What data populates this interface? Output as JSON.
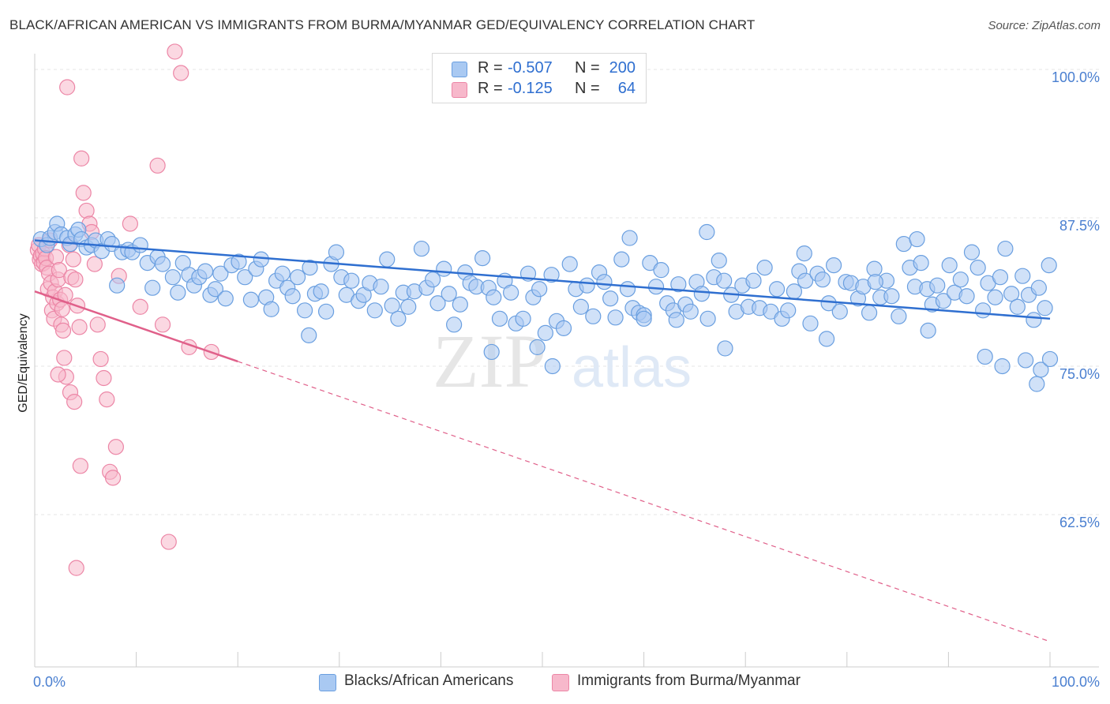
{
  "title": "BLACK/AFRICAN AMERICAN VS IMMIGRANTS FROM BURMA/MYANMAR GED/EQUIVALENCY CORRELATION CHART",
  "source": "Source: ZipAtlas.com",
  "watermark": {
    "zip": "ZIP",
    "atlas": "atlas"
  },
  "colors": {
    "blue_fill": "#a9c9f2",
    "blue_stroke": "#6a9fe0",
    "blue_line": "#2f6fd0",
    "pink_fill": "#f7b8cb",
    "pink_stroke": "#ec86a6",
    "pink_line": "#e0608a",
    "tick_text": "#4a7fd0",
    "grid": "#e4e4e4"
  },
  "legend_stats": [
    {
      "r_label": "R =",
      "r_value": "-0.507",
      "n_label": "N =",
      "n_value": "200"
    },
    {
      "r_label": "R =",
      "r_value": "-0.125",
      "n_label": "N =",
      "n_value": "64"
    }
  ],
  "chart_data": {
    "type": "scatter",
    "title": "BLACK/AFRICAN AMERICAN VS IMMIGRANTS FROM BURMA/MYANMAR GED/EQUIVALENCY CORRELATION CHART",
    "xlabel": "",
    "ylabel": "GED/Equivalency",
    "xlim": [
      0,
      100
    ],
    "ylim": [
      50,
      102.5
    ],
    "x_tick_labels": [
      "0.0%",
      "100.0%"
    ],
    "x_tick_values": [
      0,
      100
    ],
    "y_tick_labels": [
      "100.0%",
      "87.5%",
      "75.0%",
      "62.5%"
    ],
    "y_tick_values": [
      100,
      87.5,
      75,
      62.5
    ],
    "grid": true,
    "legend_position": "bottom",
    "series": [
      {
        "name": "Blacks/African Americans",
        "color": "#a9c9f2",
        "trend": {
          "x": [
            0,
            100
          ],
          "y": [
            86.2,
            79.6
          ]
        },
        "points": [
          [
            0.6,
            86.3
          ],
          [
            1.2,
            85.8
          ],
          [
            1.5,
            86.4
          ],
          [
            2,
            86.9
          ],
          [
            2.2,
            87.6
          ],
          [
            2.6,
            86.7
          ],
          [
            3.2,
            86.4
          ],
          [
            3.5,
            85.9
          ],
          [
            4,
            86.7
          ],
          [
            4.3,
            87.1
          ],
          [
            4.6,
            86.3
          ],
          [
            5.1,
            85.6
          ],
          [
            5.6,
            85.8
          ],
          [
            6,
            86.2
          ],
          [
            6.6,
            85.3
          ],
          [
            7.2,
            86.3
          ],
          [
            7.6,
            85.9
          ],
          [
            8.1,
            82.4
          ],
          [
            8.6,
            85.2
          ],
          [
            9.2,
            85.4
          ],
          [
            9.6,
            85.2
          ],
          [
            10.4,
            85.8
          ],
          [
            11.1,
            84.3
          ],
          [
            11.6,
            82.2
          ],
          [
            12.1,
            84.8
          ],
          [
            12.6,
            84.2
          ],
          [
            13.6,
            83.1
          ],
          [
            14.1,
            81.8
          ],
          [
            14.6,
            84.3
          ],
          [
            15.2,
            83.3
          ],
          [
            15.7,
            82.4
          ],
          [
            16.2,
            83.1
          ],
          [
            16.8,
            83.6
          ],
          [
            17.3,
            81.6
          ],
          [
            17.8,
            82.1
          ],
          [
            18.3,
            83.4
          ],
          [
            18.8,
            81.3
          ],
          [
            19.4,
            84.1
          ],
          [
            20.1,
            84.4
          ],
          [
            20.7,
            83.1
          ],
          [
            21.3,
            81.2
          ],
          [
            21.8,
            83.8
          ],
          [
            22.3,
            84.6
          ],
          [
            22.8,
            81.4
          ],
          [
            23.3,
            80.4
          ],
          [
            23.8,
            82.8
          ],
          [
            24.4,
            83.4
          ],
          [
            24.9,
            82.2
          ],
          [
            25.4,
            81.5
          ],
          [
            25.9,
            83.1
          ],
          [
            26.6,
            80.3
          ],
          [
            27.1,
            83.9
          ],
          [
            27.6,
            81.7
          ],
          [
            28.2,
            81.9
          ],
          [
            28.7,
            80.2
          ],
          [
            29.2,
            84.2
          ],
          [
            29.7,
            85.2
          ],
          [
            30.2,
            83.1
          ],
          [
            30.7,
            81.6
          ],
          [
            31.2,
            82.8
          ],
          [
            31.9,
            81.1
          ],
          [
            32.4,
            81.6
          ],
          [
            33,
            82.6
          ],
          [
            33.5,
            80.3
          ],
          [
            34.1,
            82.3
          ],
          [
            34.7,
            84.6
          ],
          [
            35.2,
            80.7
          ],
          [
            35.8,
            79.6
          ],
          [
            36.3,
            81.8
          ],
          [
            36.8,
            80.6
          ],
          [
            37.4,
            81.9
          ],
          [
            38.1,
            85.5
          ],
          [
            38.6,
            82.2
          ],
          [
            39.2,
            82.9
          ],
          [
            39.7,
            80.9
          ],
          [
            40.3,
            83.8
          ],
          [
            40.8,
            81.7
          ],
          [
            41.3,
            79.1
          ],
          [
            41.9,
            80.8
          ],
          [
            42.4,
            83.5
          ],
          [
            42.9,
            82.6
          ],
          [
            43.5,
            82.3
          ],
          [
            44.1,
            84.7
          ],
          [
            44.7,
            82.2
          ],
          [
            45.2,
            81.4
          ],
          [
            45.8,
            79.6
          ],
          [
            46.3,
            82.8
          ],
          [
            46.9,
            81.8
          ],
          [
            47.4,
            79.2
          ],
          [
            48.1,
            79.6
          ],
          [
            48.6,
            83.4
          ],
          [
            49.1,
            81.4
          ],
          [
            49.7,
            82.1
          ],
          [
            50.3,
            78.4
          ],
          [
            50.9,
            83.3
          ],
          [
            51.4,
            79.4
          ],
          [
            52.1,
            78.8
          ],
          [
            52.7,
            84.2
          ],
          [
            53.3,
            82.1
          ],
          [
            53.8,
            80.6
          ],
          [
            54.4,
            82.4
          ],
          [
            55,
            79.8
          ],
          [
            55.6,
            83.5
          ],
          [
            56.1,
            82.7
          ],
          [
            56.7,
            81.3
          ],
          [
            57.2,
            79.7
          ],
          [
            57.8,
            84.6
          ],
          [
            58.4,
            82.1
          ],
          [
            58.9,
            80.5
          ],
          [
            59.5,
            80.1
          ],
          [
            60,
            79.9
          ],
          [
            60.6,
            84.3
          ],
          [
            61.2,
            82.3
          ],
          [
            61.7,
            83.7
          ],
          [
            62.3,
            80.9
          ],
          [
            62.9,
            80.3
          ],
          [
            63.4,
            82.5
          ],
          [
            64.1,
            80.8
          ],
          [
            64.6,
            80.2
          ],
          [
            65.2,
            82.7
          ],
          [
            65.7,
            81.7
          ],
          [
            66.3,
            79.6
          ],
          [
            66.9,
            83.1
          ],
          [
            67.4,
            84.5
          ],
          [
            67.9,
            82.8
          ],
          [
            68.6,
            81.6
          ],
          [
            69.1,
            80.2
          ],
          [
            69.7,
            82.4
          ],
          [
            70.3,
            80.6
          ],
          [
            70.8,
            82.8
          ],
          [
            71.4,
            80.5
          ],
          [
            71.9,
            83.9
          ],
          [
            72.5,
            80.2
          ],
          [
            73.1,
            82.1
          ],
          [
            73.6,
            79.6
          ],
          [
            74.2,
            80.3
          ],
          [
            74.8,
            81.9
          ],
          [
            75.3,
            83.6
          ],
          [
            75.9,
            82.8
          ],
          [
            76.4,
            79.2
          ],
          [
            77.1,
            83.4
          ],
          [
            77.6,
            82.9
          ],
          [
            78.2,
            80.9
          ],
          [
            78.7,
            84.1
          ],
          [
            79.3,
            80.2
          ],
          [
            79.9,
            82.7
          ],
          [
            80.4,
            82.6
          ],
          [
            81.1,
            81.3
          ],
          [
            81.6,
            82.3
          ],
          [
            82.2,
            80.1
          ],
          [
            82.7,
            83.8
          ],
          [
            83.3,
            81.4
          ],
          [
            83.9,
            82.8
          ],
          [
            84.4,
            81.5
          ],
          [
            85.1,
            79.8
          ],
          [
            85.6,
            85.9
          ],
          [
            86.2,
            83.9
          ],
          [
            86.7,
            82.3
          ],
          [
            87.3,
            84.3
          ],
          [
            87.9,
            82.1
          ],
          [
            88.4,
            80.8
          ],
          [
            88.9,
            82.4
          ],
          [
            89.5,
            81.1
          ],
          [
            90.1,
            84.1
          ],
          [
            90.6,
            81.8
          ],
          [
            91.2,
            82.9
          ],
          [
            91.8,
            81.5
          ],
          [
            92.3,
            85.2
          ],
          [
            92.9,
            83.9
          ],
          [
            93.4,
            80.3
          ],
          [
            93.9,
            82.6
          ],
          [
            94.6,
            81.4
          ],
          [
            95.1,
            83.1
          ],
          [
            95.6,
            85.5
          ],
          [
            96.2,
            81.7
          ],
          [
            96.8,
            80.6
          ],
          [
            97.3,
            83.2
          ],
          [
            97.9,
            81.6
          ],
          [
            98.4,
            79.5
          ],
          [
            98.9,
            82.2
          ],
          [
            99.5,
            80.5
          ],
          [
            99.9,
            84.1
          ],
          [
            27,
            78.2
          ],
          [
            45,
            76.8
          ],
          [
            60,
            79.6
          ],
          [
            68,
            77.1
          ],
          [
            78,
            77.9
          ],
          [
            88,
            78.6
          ],
          [
            93.6,
            76.4
          ],
          [
            95.3,
            75.6
          ],
          [
            97.6,
            76.1
          ],
          [
            98.7,
            74.1
          ],
          [
            99.1,
            75.3
          ],
          [
            100,
            76.2
          ],
          [
            51,
            75.6
          ],
          [
            49.5,
            77.2
          ],
          [
            63.2,
            79.5
          ],
          [
            58.6,
            86.4
          ],
          [
            66.2,
            86.9
          ],
          [
            75.8,
            85.1
          ],
          [
            86.9,
            86.3
          ],
          [
            82.8,
            82.7
          ]
        ]
      },
      {
        "name": "Immigrants from Burma/Myanmar",
        "color": "#f7b8cb",
        "trend": {
          "x": [
            0,
            20
          ],
          "y": [
            81.9,
            76.0
          ]
        },
        "trend_extended": {
          "x": [
            20,
            100
          ],
          "y": [
            76.0,
            52.4
          ]
        },
        "points": [
          [
            0.3,
            85.4
          ],
          [
            0.4,
            85.8
          ],
          [
            0.5,
            84.6
          ],
          [
            0.6,
            84.9
          ],
          [
            0.7,
            84.2
          ],
          [
            0.8,
            85.1
          ],
          [
            0.9,
            84.3
          ],
          [
            1,
            85.5
          ],
          [
            1.1,
            84.7
          ],
          [
            1.2,
            83.9
          ],
          [
            1.3,
            82.1
          ],
          [
            1.4,
            83.4
          ],
          [
            1.5,
            86.2
          ],
          [
            1.6,
            82.6
          ],
          [
            1.7,
            80.3
          ],
          [
            1.8,
            81.4
          ],
          [
            1.9,
            79.6
          ],
          [
            2,
            81.9
          ],
          [
            2.1,
            84.8
          ],
          [
            2.2,
            80.9
          ],
          [
            2.3,
            82.9
          ],
          [
            2.4,
            83.7
          ],
          [
            2.5,
            81.2
          ],
          [
            2.6,
            79.1
          ],
          [
            2.7,
            80.4
          ],
          [
            2.8,
            78.6
          ],
          [
            2.9,
            76.3
          ],
          [
            3,
            81.6
          ],
          [
            3.2,
            99.1
          ],
          [
            3.4,
            85.8
          ],
          [
            3.6,
            83.1
          ],
          [
            3.8,
            84.6
          ],
          [
            4,
            82.9
          ],
          [
            4.2,
            80.7
          ],
          [
            4.4,
            78.9
          ],
          [
            4.6,
            93.1
          ],
          [
            4.8,
            90.2
          ],
          [
            5.1,
            88.7
          ],
          [
            5.4,
            87.6
          ],
          [
            5.6,
            86.9
          ],
          [
            5.9,
            84.2
          ],
          [
            6.2,
            79.1
          ],
          [
            6.5,
            76.2
          ],
          [
            6.8,
            74.6
          ],
          [
            7.1,
            72.8
          ],
          [
            7.4,
            66.7
          ],
          [
            7.7,
            66.2
          ],
          [
            8,
            68.8
          ],
          [
            8.3,
            83.2
          ],
          [
            9.4,
            87.6
          ],
          [
            10.4,
            80.6
          ],
          [
            12.1,
            92.5
          ],
          [
            12.6,
            79.1
          ],
          [
            13.2,
            60.8
          ],
          [
            15.2,
            77.2
          ],
          [
            17.4,
            76.8
          ],
          [
            3.1,
            74.7
          ],
          [
            3.5,
            73.4
          ],
          [
            3.9,
            72.6
          ],
          [
            4.1,
            58.6
          ],
          [
            4.5,
            67.2
          ],
          [
            2.3,
            74.9
          ],
          [
            13.8,
            102.1
          ],
          [
            14.4,
            100.3
          ]
        ]
      }
    ]
  },
  "legend_series": [
    "Blacks/African Americans",
    "Immigrants from Burma/Myanmar"
  ]
}
